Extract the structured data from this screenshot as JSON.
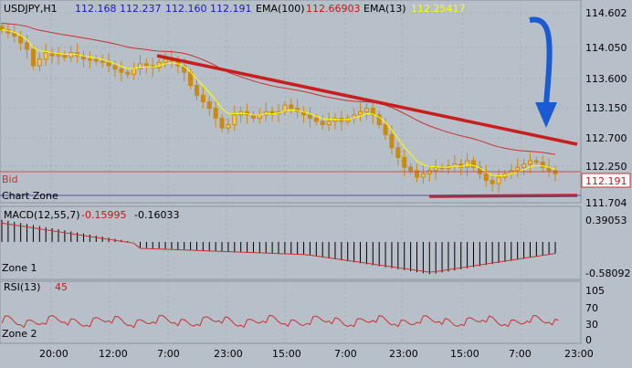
{
  "colors": {
    "bg": "#b7bfc9",
    "candle": "#c88a14",
    "candle_light": "#f1c56a",
    "ema13": "#ffff00",
    "ema100": "#c83232",
    "trend": "#c81e1e",
    "blue": "#1a5ad2",
    "bid": "#c83232",
    "zone": "#5a50a0",
    "label_blue": "#1b1bb0",
    "label_red": "#c01818"
  },
  "header": {
    "symbol": "USDJPY,H1",
    "open": "112.168",
    "high": "112.237",
    "low": "112.160",
    "close": "112.191",
    "ema100_label": "EMA(100)",
    "ema100_value": "112.66903",
    "ema13_label": "EMA(13)",
    "ema13_value": "112.25417"
  },
  "main_labels": {
    "bid": "Bid",
    "chart_zone": "Chart Zone",
    "bid_price": "112.191"
  },
  "macd": {
    "title": "MACD(12,55,7)",
    "value1": "-0.15995",
    "value2": "-0.16033",
    "zone": "Zone 1",
    "top": "0.39053",
    "bottom": "-0.58092"
  },
  "rsi": {
    "title": "RSI(13)",
    "value": "45",
    "zone": "Zone 2"
  },
  "chart_data": {
    "type": "candlestick",
    "price_axis": {
      "ticks": [
        "114.602",
        "114.050",
        "113.600",
        "113.150",
        "112.700",
        "112.250",
        "111.704"
      ],
      "ylim": [
        111.704,
        114.602
      ]
    },
    "time_axis": {
      "labels": [
        "20:00",
        "12:00",
        "7:00",
        "23:00",
        "15:00",
        "7:00",
        "23:00",
        "15:00",
        "7:00",
        "23:00"
      ]
    },
    "close_path": [
      114.4,
      114.35,
      114.3,
      114.2,
      114.1,
      113.85,
      113.95,
      114.05,
      114.0,
      114.02,
      113.98,
      114.05,
      114.0,
      113.95,
      113.95,
      113.92,
      113.9,
      113.85,
      113.8,
      113.75,
      113.72,
      113.8,
      113.88,
      113.85,
      113.82,
      113.9,
      113.95,
      113.92,
      113.85,
      113.75,
      113.55,
      113.4,
      113.3,
      113.2,
      113.05,
      112.9,
      112.95,
      113.1,
      113.15,
      113.1,
      113.05,
      113.1,
      113.15,
      113.12,
      113.15,
      113.25,
      113.2,
      113.15,
      113.1,
      113.05,
      113.0,
      112.95,
      113.0,
      113.05,
      113.0,
      113.05,
      113.1,
      113.15,
      113.2,
      113.1,
      112.95,
      112.8,
      112.6,
      112.45,
      112.3,
      112.25,
      112.15,
      112.2,
      112.25,
      112.3,
      112.28,
      112.32,
      112.35,
      112.3,
      112.4,
      112.3,
      112.2,
      112.1,
      112.05,
      112.15,
      112.2,
      112.25,
      112.3,
      112.35,
      112.4,
      112.38,
      112.3,
      112.25,
      112.2
    ],
    "trend_line": [
      [
        114.0,
        "start 7:00"
      ],
      [
        112.6,
        "end"
      ]
    ],
    "support_line": 111.8,
    "bid": 112.191,
    "macd": {
      "ylim": [
        -0.58092,
        0.39053
      ]
    },
    "rsi": {
      "ticks": [
        105,
        70,
        30,
        0
      ],
      "ylim": [
        0,
        105
      ]
    }
  }
}
